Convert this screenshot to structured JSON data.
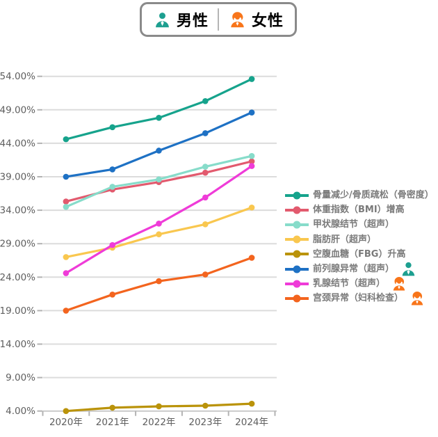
{
  "top_legend": {
    "male": {
      "label": "男性",
      "color": "#1d9f90"
    },
    "female": {
      "label": "女性",
      "color": "#f8751a"
    }
  },
  "chart_data": {
    "type": "line",
    "x_categories": [
      "2020年",
      "2021年",
      "2022年",
      "2023年",
      "2024年"
    ],
    "y_axis": {
      "min": 4,
      "max": 54,
      "step": 5,
      "unit": "%",
      "tick_labels": [
        "4.00%",
        "9.00%",
        "14.00%",
        "19.00%",
        "24.00%",
        "29.00%",
        "34.00%",
        "39.00%",
        "44.00%",
        "49.00%",
        "54.00%"
      ],
      "grid": true
    },
    "legend_position": "right",
    "series": [
      {
        "name": "骨量减少/骨质疏松（骨密度）",
        "color": "#16a38c",
        "values": [
          44.6,
          46.4,
          47.8,
          50.3,
          53.6
        ]
      },
      {
        "name": "体重指数（BMI）增高",
        "color": "#e25a6e",
        "values": [
          35.3,
          37.1,
          38.2,
          39.6,
          41.3
        ]
      },
      {
        "name": "甲状腺结节（超声）",
        "color": "#87dcca",
        "values": [
          34.5,
          37.5,
          38.6,
          40.5,
          42.1
        ]
      },
      {
        "name": "脂肪肝（超声）",
        "color": "#f9c74f",
        "values": [
          27.0,
          28.4,
          30.4,
          31.9,
          34.4
        ]
      },
      {
        "name": "空腹血糖（FBG）升高",
        "color": "#ba930a",
        "values": [
          4.0,
          4.5,
          4.7,
          4.8,
          5.1
        ]
      },
      {
        "name": "前列腺异常（超声）",
        "color": "#1e71c4",
        "values": [
          39.0,
          40.1,
          42.9,
          45.5,
          48.6
        ],
        "gender_icon": "male"
      },
      {
        "name": "乳腺结节（超声）",
        "color": "#ef3bd8",
        "values": [
          24.6,
          28.8,
          32.0,
          35.9,
          40.6
        ],
        "gender_icon": "female"
      },
      {
        "name": "宫颈异常（妇科检查）",
        "color": "#f3641e",
        "values": [
          19.0,
          21.4,
          23.4,
          24.4,
          26.9
        ],
        "gender_icon": "female"
      }
    ]
  },
  "styles": {
    "grid_color": "#dcdcdc",
    "axis_color": "#c9c9c9",
    "tick_color": "#b3b3b3",
    "axis_label_color": "#5e5e5e",
    "legend_text_color": "#7a7a7a",
    "legend_border_color": "#8a8a8a",
    "background": "#ffffff"
  }
}
